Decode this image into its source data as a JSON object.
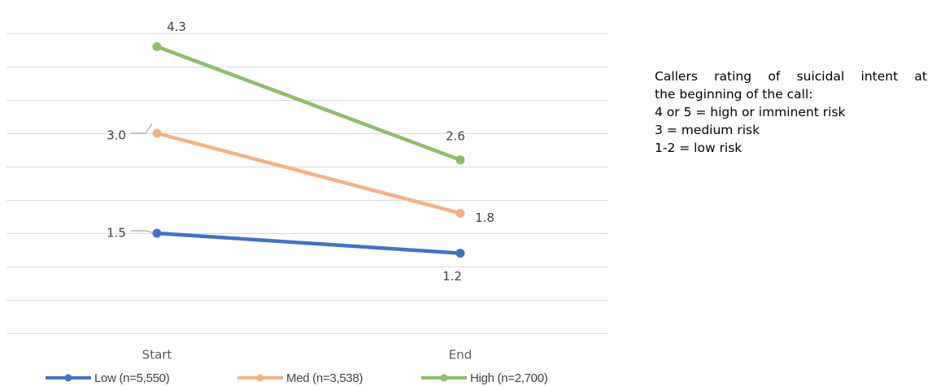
{
  "chart_data": {
    "type": "line",
    "categories": [
      "Start",
      "End"
    ],
    "series": [
      {
        "name": "Low (n=5,550)",
        "values": [
          1.5,
          1.2
        ],
        "color": "#4472C4",
        "labels": [
          "1.5",
          "1.2"
        ]
      },
      {
        "name": "Med (n=3,538)",
        "values": [
          3.0,
          1.8
        ],
        "color": "#F4B183",
        "labels": [
          "3.0",
          "1.8"
        ]
      },
      {
        "name": "High (n=2,700)",
        "values": [
          4.3,
          2.6
        ],
        "color": "#8FBC6B",
        "labels": [
          "4.3",
          "2.6"
        ]
      }
    ],
    "ylim": [
      0,
      5
    ],
    "grid": true,
    "legend_position": "bottom"
  },
  "annotation": {
    "lines": [
      "Callers rating of suicidal intent at",
      "the beginning of the call:",
      "4 or 5 = high or imminent risk",
      "3 = medium risk",
      "1-2 = low risk"
    ]
  }
}
